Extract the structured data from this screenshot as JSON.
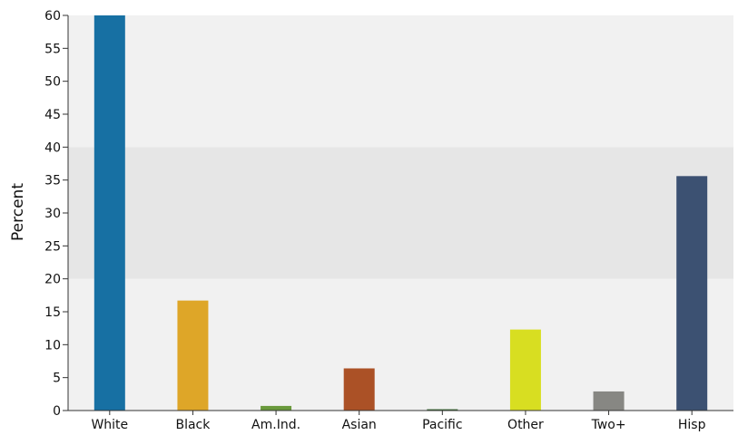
{
  "chart_data": {
    "type": "bar",
    "categories": [
      "White",
      "Black",
      "Am.Ind.",
      "Asian",
      "Pacific",
      "Other",
      "Two+",
      "Hisp"
    ],
    "values": [
      60.3,
      16.7,
      0.7,
      6.4,
      0.2,
      12.3,
      2.9,
      35.6
    ],
    "bar_colors": [
      "#1770a3",
      "#dea628",
      "#6a9a3c",
      "#ab5126",
      "#3f6e3a",
      "#d8de21",
      "#878783",
      "#3c5172"
    ],
    "xlabel": "",
    "ylabel": "Percent",
    "ylim": [
      0,
      60
    ],
    "yticks": [
      0,
      5,
      10,
      15,
      20,
      25,
      30,
      35,
      40,
      45,
      50,
      55,
      60
    ],
    "grid": false,
    "bands": [
      {
        "from": 0,
        "to": 20,
        "color": "#f1f1f1"
      },
      {
        "from": 20,
        "to": 40,
        "color": "#e6e6e6"
      },
      {
        "from": 40,
        "to": 60,
        "color": "#f1f1f1"
      }
    ],
    "axis_color": "#333333"
  }
}
